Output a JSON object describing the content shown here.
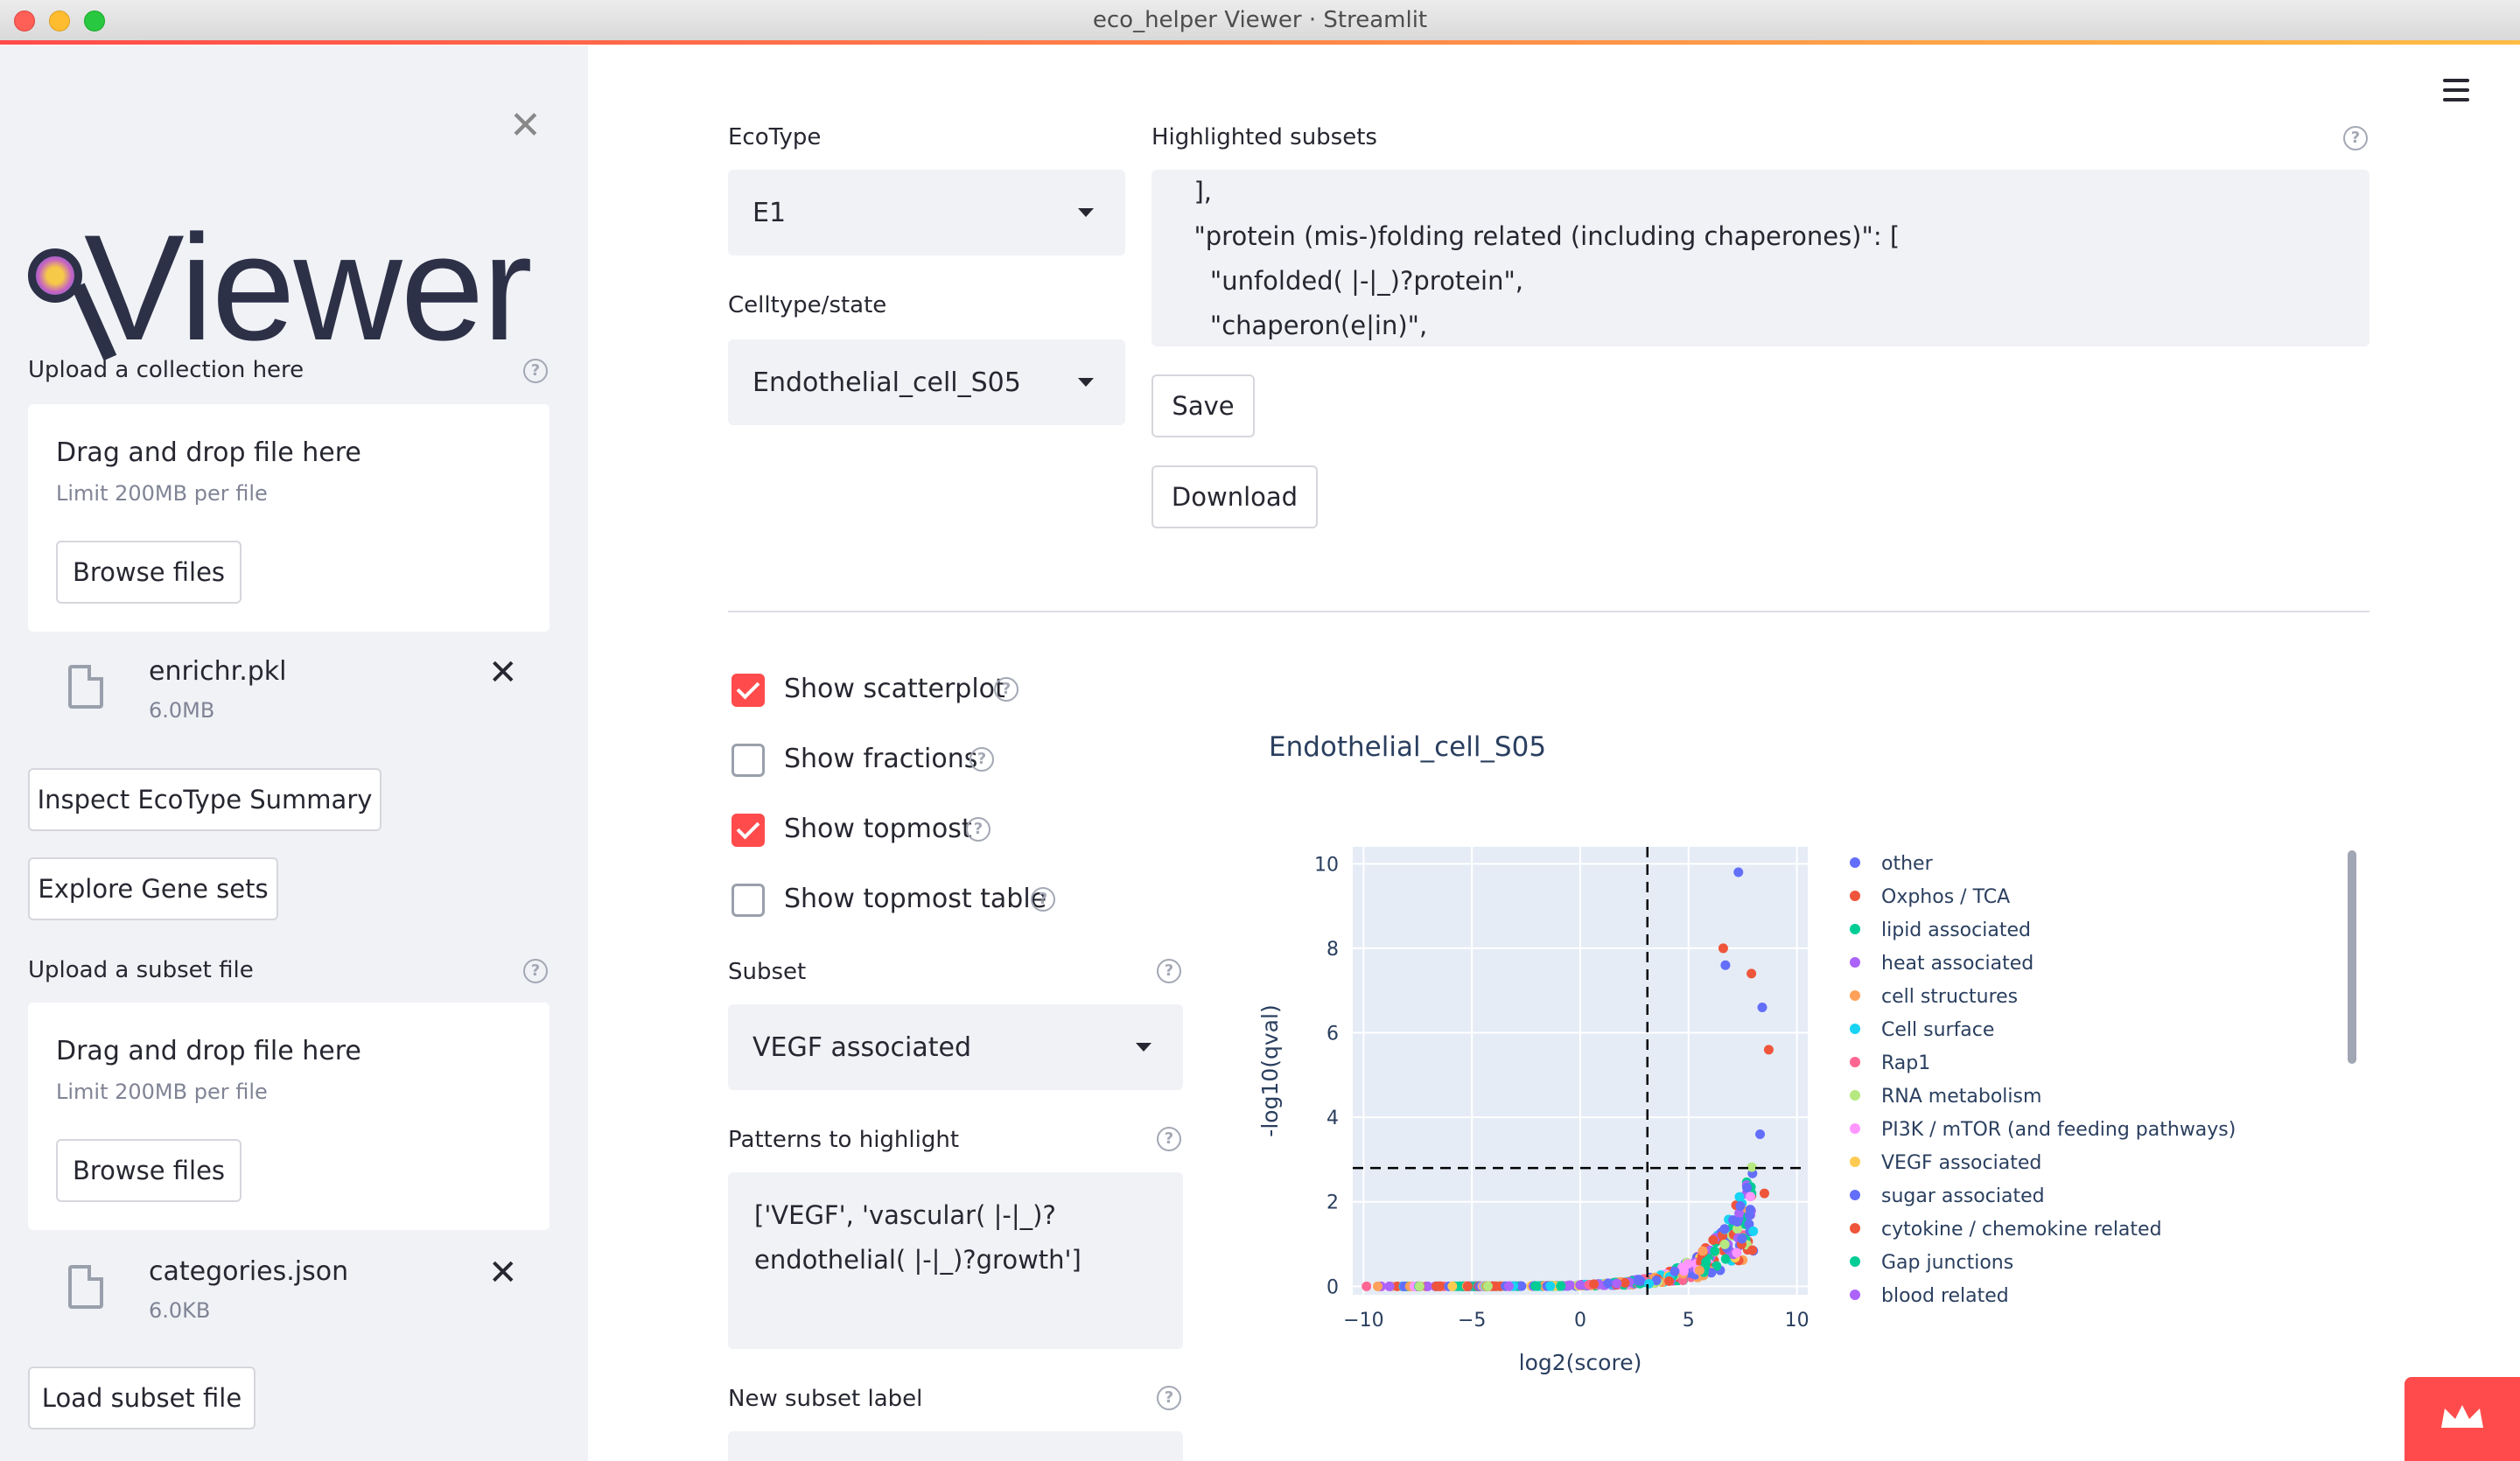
{
  "window": {
    "title": "eco_helper Viewer · Streamlit"
  },
  "sidebar": {
    "logo_text": "Viewer",
    "collection_label": "Upload a collection here",
    "collection_drop": {
      "title": "Drag and drop file here",
      "limit": "Limit 200MB per file",
      "browse": "Browse files"
    },
    "collection_file": {
      "name": "enrichr.pkl",
      "size": "6.0MB"
    },
    "inspect_button": "Inspect EcoType Summary",
    "explore_button": "Explore Gene sets",
    "subset_label": "Upload a subset file",
    "subset_drop": {
      "title": "Drag and drop file here",
      "limit": "Limit 200MB per file",
      "browse": "Browse files"
    },
    "subset_file": {
      "name": "categories.json",
      "size": "6.0KB"
    },
    "load_button": "Load subset file"
  },
  "main": {
    "ecotype_label": "EcoType",
    "ecotype_value": "E1",
    "celltype_label": "Celltype/state",
    "celltype_value": "Endothelial_cell_S05",
    "highlighted_label": "Highlighted subsets",
    "highlighted_text": "  ],\n  \"protein (mis-)folding related (including chaperones)\": [\n    \"unfolded( |-|_)?protein\",\n    \"chaperon(e|in)\",\n    \"...\"",
    "save_button": "Save",
    "download_button": "Download",
    "checkboxes": [
      {
        "label": "Show scatterplot",
        "checked": true
      },
      {
        "label": "Show fractions",
        "checked": false
      },
      {
        "label": "Show topmost",
        "checked": true
      },
      {
        "label": "Show topmost table",
        "checked": false
      }
    ],
    "subset_label": "Subset",
    "subset_value": "VEGF associated",
    "patterns_label": "Patterns to highlight",
    "patterns_text": "['VEGF', 'vascular( |-|_)?\nendothelial( |-|_)?growth']",
    "new_subset_label": "New subset label"
  },
  "chart_data": {
    "type": "scatter",
    "title": "Endothelial_cell_S05",
    "xlabel": "log2(score)",
    "ylabel": "-log10(qval)",
    "xlim": [
      -10.5,
      10.5
    ],
    "ylim": [
      -0.2,
      10.4
    ],
    "xticks": [
      -10,
      -5,
      0,
      5,
      10
    ],
    "yticks": [
      0,
      2,
      4,
      6,
      8,
      10
    ],
    "threshold_x": 3.1,
    "threshold_y": 2.8,
    "legend_placement": "right",
    "grid": true,
    "series": [
      {
        "name": "other",
        "color": "#636efa"
      },
      {
        "name": "Oxphos / TCA",
        "color": "#ef553b"
      },
      {
        "name": "lipid associated",
        "color": "#00cc96"
      },
      {
        "name": "heat associated",
        "color": "#ab63fa"
      },
      {
        "name": "cell structures",
        "color": "#ffa15a"
      },
      {
        "name": "Cell surface",
        "color": "#19d3f3"
      },
      {
        "name": "Rap1",
        "color": "#ff6692"
      },
      {
        "name": "RNA metabolism",
        "color": "#b6e880"
      },
      {
        "name": "PI3K / mTOR (and feeding pathways)",
        "color": "#ff97ff"
      },
      {
        "name": "VEGF associated",
        "color": "#fecb52"
      },
      {
        "name": "sugar associated",
        "color": "#636efa"
      },
      {
        "name": "cytokine / chemokine related",
        "color": "#ef553b"
      },
      {
        "name": "Gap junctions",
        "color": "#00cc96"
      },
      {
        "name": "blood related",
        "color": "#ab63fa"
      }
    ],
    "highlight_points": [
      {
        "x": 7.3,
        "y": 9.8
      },
      {
        "x": 6.6,
        "y": 8.0
      },
      {
        "x": 6.7,
        "y": 7.6
      },
      {
        "x": 7.9,
        "y": 7.4
      },
      {
        "x": 8.4,
        "y": 6.6
      },
      {
        "x": 8.7,
        "y": 5.6
      },
      {
        "x": 8.3,
        "y": 3.6
      },
      {
        "x": 8.5,
        "y": 2.2
      }
    ]
  }
}
